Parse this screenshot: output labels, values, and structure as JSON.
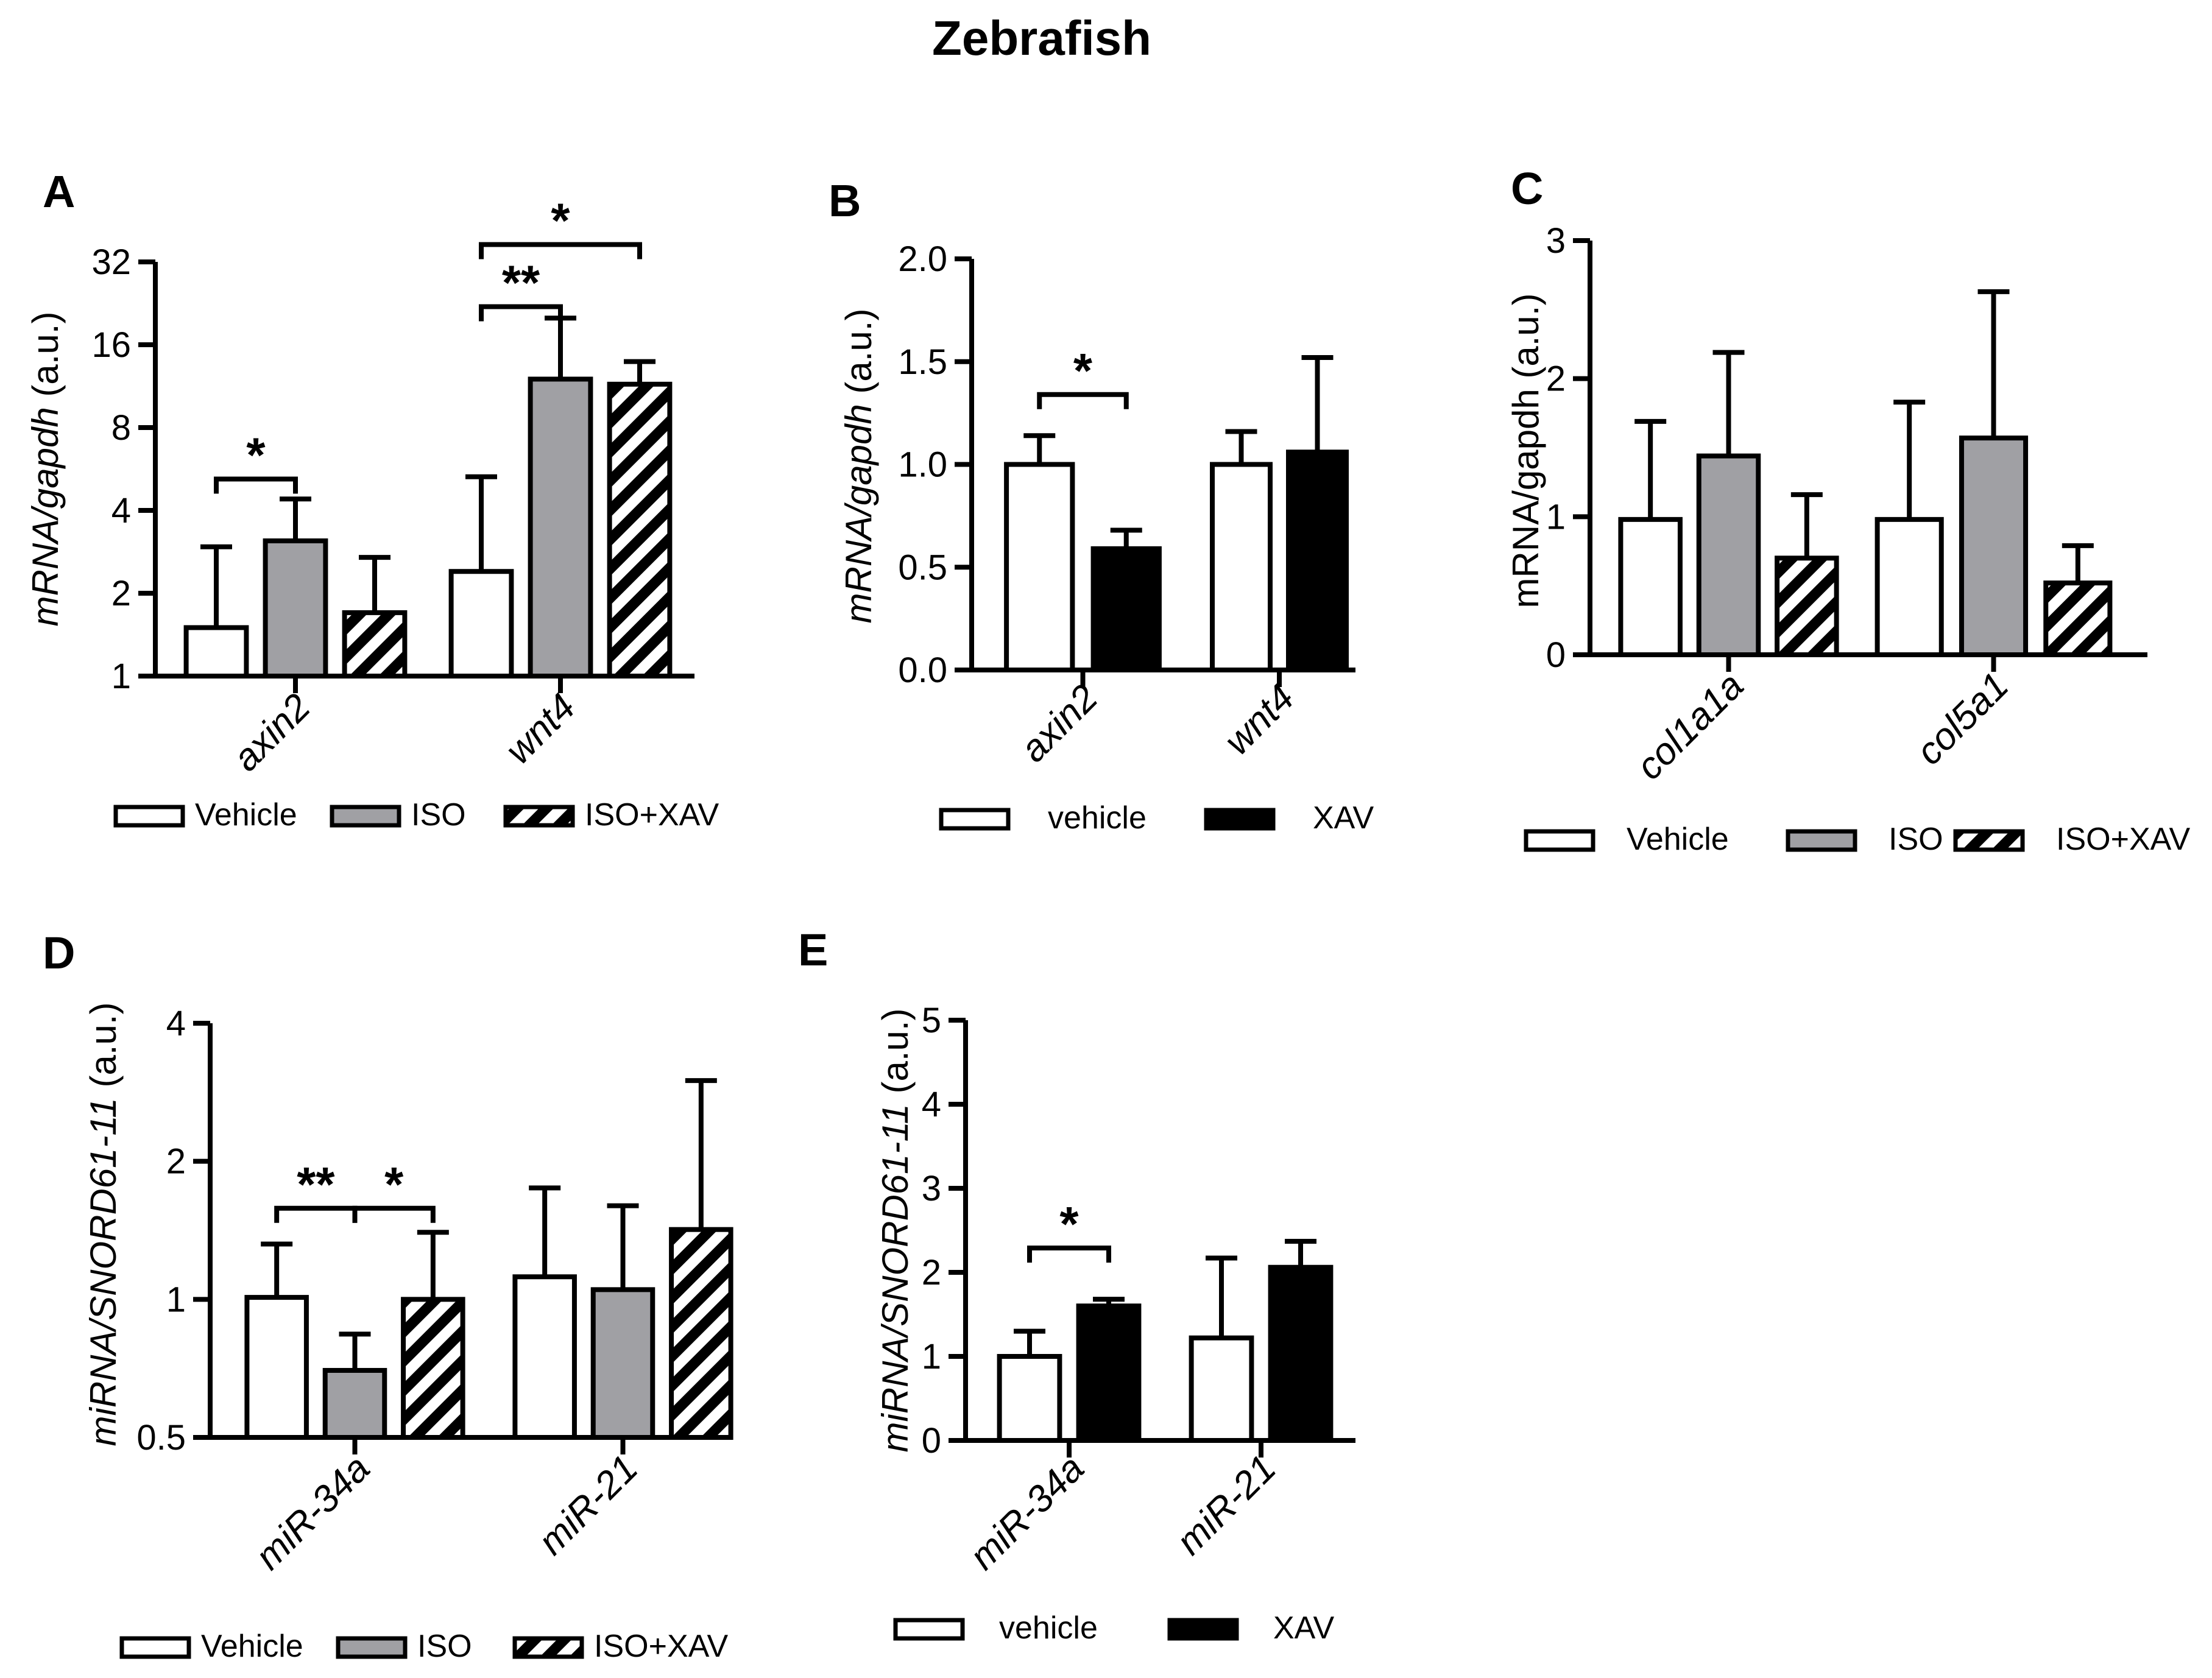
{
  "title": "Zebrafish",
  "colors": {
    "vehicle": "#ffffff",
    "iso": "#a0a0a4",
    "xav": "#000000",
    "stroke": "#000000"
  },
  "chart_data": [
    {
      "panel": "A",
      "type": "bar",
      "yscale": "log2",
      "ylabel_parts": [
        {
          "t": "mRNA/",
          "i": true
        },
        {
          "t": "gapdh",
          "i": true
        },
        {
          "t": " (a.u.)",
          "i": false
        }
      ],
      "yticks": [
        1,
        2,
        4,
        8,
        16,
        32
      ],
      "ytick_labels": [
        "1",
        "2",
        "4",
        "8",
        "16",
        "32"
      ],
      "ylim": [
        1,
        32
      ],
      "categories": [
        "axin2",
        "wnt4"
      ],
      "category_italic": true,
      "series": [
        {
          "name": "Vehicle",
          "fill": "vehicle",
          "values": [
            1.5,
            2.4
          ],
          "err": [
            2.95,
            5.3
          ]
        },
        {
          "name": "ISO",
          "fill": "iso",
          "values": [
            3.1,
            12.0
          ],
          "err": [
            4.4,
            20.0
          ]
        },
        {
          "name": "ISO+XAV",
          "fill": "hatch",
          "values": [
            1.7,
            11.5
          ],
          "err": [
            2.7,
            13.9
          ]
        }
      ],
      "sig": [
        {
          "cat": 0,
          "from": 0,
          "to": 1,
          "label": "*",
          "y": 5.2
        },
        {
          "cat": 1,
          "from": 0,
          "to": 1,
          "label": "**",
          "y": 22.0
        },
        {
          "cat": 1,
          "from": 0,
          "to": 2,
          "label": "*",
          "y": 37.0
        }
      ]
    },
    {
      "panel": "B",
      "type": "bar",
      "yscale": "linear",
      "ylabel_parts": [
        {
          "t": "mRNA/",
          "i": true
        },
        {
          "t": "gapdh",
          "i": true
        },
        {
          "t": " (a.u.)",
          "i": false
        }
      ],
      "yticks": [
        0,
        0.5,
        1.0,
        1.5,
        2.0
      ],
      "ytick_labels": [
        "0.0",
        "0.5",
        "1.0",
        "1.5",
        "2.0"
      ],
      "ylim": [
        0,
        2.0
      ],
      "categories": [
        "axin2",
        "wnt4"
      ],
      "category_italic": true,
      "series": [
        {
          "name": "vehicle",
          "fill": "vehicle",
          "values": [
            1.0,
            1.0
          ],
          "err": [
            1.14,
            1.16
          ]
        },
        {
          "name": "XAV",
          "fill": "xav",
          "values": [
            0.59,
            1.06
          ],
          "err": [
            0.68,
            1.52
          ]
        }
      ],
      "sig": [
        {
          "cat": 0,
          "from": 0,
          "to": 1,
          "label": "*",
          "y": 1.34
        }
      ]
    },
    {
      "panel": "C",
      "type": "bar",
      "yscale": "linear",
      "ylabel_parts": [
        {
          "t": "mRNA/gapdh (a.u.)",
          "i": false
        }
      ],
      "yticks": [
        0,
        1,
        2,
        3
      ],
      "ytick_labels": [
        "0",
        "1",
        "2",
        "3"
      ],
      "ylim": [
        0,
        3
      ],
      "categories": [
        "col1a1a",
        "col5a1"
      ],
      "category_italic": true,
      "series": [
        {
          "name": "Vehicle",
          "fill": "vehicle",
          "values": [
            0.98,
            0.98
          ],
          "err": [
            1.69,
            1.83
          ]
        },
        {
          "name": "ISO",
          "fill": "iso",
          "values": [
            1.44,
            1.57
          ],
          "err": [
            2.19,
            2.63
          ]
        },
        {
          "name": "ISO+XAV",
          "fill": "hatch",
          "values": [
            0.7,
            0.52
          ],
          "err": [
            1.16,
            0.79
          ]
        }
      ],
      "sig": []
    },
    {
      "panel": "D",
      "type": "bar",
      "yscale": "log2",
      "ylabel_parts": [
        {
          "t": "miRNA/SNORD61-11",
          "i": true
        },
        {
          "t": " (a.u.)",
          "i": false
        }
      ],
      "yticks": [
        0.5,
        1,
        2,
        4
      ],
      "ytick_labels": [
        "0.5",
        "1",
        "2",
        "4"
      ],
      "ylim": [
        0.5,
        4
      ],
      "categories": [
        "miR-34a",
        "miR-21"
      ],
      "category_italic": true,
      "series": [
        {
          "name": "Vehicle",
          "fill": "vehicle",
          "values": [
            1.01,
            1.12
          ],
          "err": [
            1.32,
            1.75
          ]
        },
        {
          "name": "ISO",
          "fill": "iso",
          "values": [
            0.7,
            1.05
          ],
          "err": [
            0.84,
            1.6
          ]
        },
        {
          "name": "ISO+XAV",
          "fill": "hatch",
          "values": [
            1.0,
            1.42
          ],
          "err": [
            1.4,
            3.0
          ]
        }
      ],
      "sig": [
        {
          "cat": 0,
          "from": 0,
          "to": 1,
          "label": "**",
          "y": 1.58
        },
        {
          "cat": 0,
          "from": 1,
          "to": 2,
          "label": "*",
          "y": 1.58
        }
      ]
    },
    {
      "panel": "E",
      "type": "bar",
      "yscale": "linear",
      "ylabel_parts": [
        {
          "t": "miRNA/SNORD61-11",
          "i": true
        },
        {
          "t": " (a.u.)",
          "i": false
        }
      ],
      "yticks": [
        0,
        1,
        2,
        3,
        4,
        5
      ],
      "ytick_labels": [
        "0",
        "1",
        "2",
        "3",
        "4",
        "5"
      ],
      "ylim": [
        0,
        5
      ],
      "categories": [
        "miR-34a",
        "miR-21"
      ],
      "category_italic": true,
      "series": [
        {
          "name": "vehicle",
          "fill": "vehicle",
          "values": [
            1.0,
            1.22
          ],
          "err": [
            1.3,
            2.17
          ]
        },
        {
          "name": "XAV",
          "fill": "xav",
          "values": [
            1.6,
            2.06
          ],
          "err": [
            1.68,
            2.37
          ]
        }
      ],
      "sig": [
        {
          "cat": 0,
          "from": 0,
          "to": 1,
          "label": "*",
          "y": 2.29
        }
      ]
    }
  ]
}
